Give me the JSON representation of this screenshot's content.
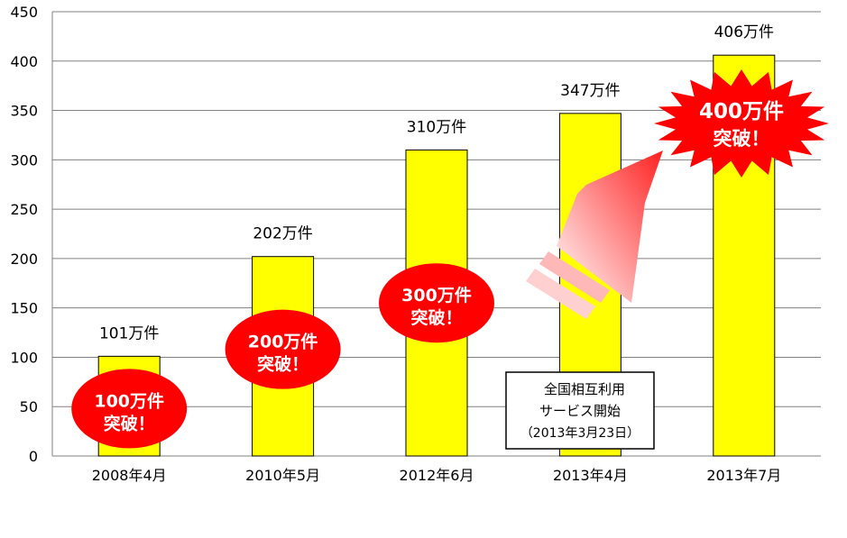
{
  "chart_data": {
    "type": "bar",
    "categories": [
      "2008年4月",
      "2010年5月",
      "2012年6月",
      "2013年4月",
      "2013年7月"
    ],
    "values": [
      101,
      202,
      310,
      347,
      406
    ],
    "data_labels": [
      "101万件",
      "202万件",
      "310万件",
      "347万件",
      "406万件"
    ],
    "ylim": [
      0,
      450
    ],
    "yticks": [
      0,
      50,
      100,
      150,
      200,
      250,
      300,
      350,
      400,
      450
    ],
    "grid": true,
    "colors": {
      "bar": "#ffff00",
      "bar_stroke": "#000000",
      "burst": "#ff0000",
      "burst_text": "#ffffff",
      "grid": "#808080"
    },
    "annotations": {
      "milestones": [
        {
          "line1": "100万件",
          "line2": "突破！",
          "category_index": 0,
          "y_value": 48
        },
        {
          "line1": "200万件",
          "line2": "突破！",
          "category_index": 1,
          "y_value": 108
        },
        {
          "line1": "300万件",
          "line2": "突破！",
          "category_index": 2,
          "y_value": 155
        }
      ],
      "star_burst": {
        "line1": "400万件",
        "line2": "突破！"
      },
      "note_box": {
        "line1": "全国相互利用",
        "line2": "サービス開始",
        "line3": "（2013年3月23日）"
      }
    }
  }
}
